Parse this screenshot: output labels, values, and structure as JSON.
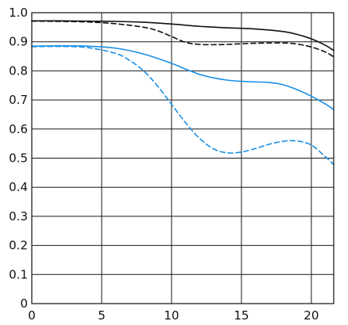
{
  "chart_data": {
    "type": "line",
    "title": "",
    "xlabel": "",
    "ylabel": "",
    "xlim": [
      0,
      21.6
    ],
    "ylim": [
      0,
      1.0
    ],
    "x_ticks": [
      0,
      5,
      10,
      15,
      20
    ],
    "x_tick_labels": [
      "0",
      "5",
      "10",
      "15",
      "20"
    ],
    "y_ticks": [
      0,
      0.1,
      0.2,
      0.3,
      0.4,
      0.5,
      0.6,
      0.7,
      0.8,
      0.9,
      1.0
    ],
    "y_tick_labels": [
      "0",
      "0.1",
      "0.2",
      "0.3",
      "0.4",
      "0.5",
      "0.6",
      "0.7",
      "0.8",
      "0.9",
      "1.0"
    ],
    "grid": true,
    "legend": "none",
    "series": [
      {
        "color": "#111111",
        "dash": "solid",
        "x": [
          0,
          2,
          4,
          6,
          8,
          10,
          12,
          14,
          16,
          18,
          19,
          20,
          21,
          21.6
        ],
        "y": [
          0.972,
          0.972,
          0.971,
          0.97,
          0.967,
          0.961,
          0.953,
          0.948,
          0.944,
          0.935,
          0.925,
          0.91,
          0.888,
          0.87
        ]
      },
      {
        "color": "#111111",
        "dash": "dashed",
        "x": [
          0,
          2,
          4,
          6,
          8,
          9,
          10,
          11,
          12,
          13,
          14,
          16,
          18,
          19,
          20,
          21,
          21.6
        ],
        "y": [
          0.971,
          0.97,
          0.968,
          0.962,
          0.95,
          0.938,
          0.918,
          0.898,
          0.891,
          0.89,
          0.891,
          0.895,
          0.896,
          0.892,
          0.882,
          0.865,
          0.848
        ]
      },
      {
        "color": "#1a90e6",
        "dash": "solid",
        "x": [
          0,
          2,
          4,
          6,
          8,
          10,
          11,
          12,
          13,
          14,
          15,
          16,
          17,
          18,
          19,
          20,
          21,
          21.6
        ],
        "y": [
          0.885,
          0.886,
          0.885,
          0.878,
          0.858,
          0.826,
          0.806,
          0.788,
          0.776,
          0.768,
          0.764,
          0.762,
          0.76,
          0.752,
          0.735,
          0.713,
          0.686,
          0.667
        ]
      },
      {
        "color": "#1a90e6",
        "dash": "dashed",
        "x": [
          0,
          2,
          4,
          6,
          7,
          8,
          9,
          10,
          11,
          12,
          13,
          14,
          15,
          16,
          17,
          18,
          19,
          20,
          21,
          21.6
        ],
        "y": [
          0.883,
          0.884,
          0.88,
          0.86,
          0.836,
          0.8,
          0.748,
          0.685,
          0.622,
          0.568,
          0.532,
          0.518,
          0.521,
          0.533,
          0.548,
          0.558,
          0.559,
          0.545,
          0.505,
          0.478
        ]
      }
    ]
  }
}
